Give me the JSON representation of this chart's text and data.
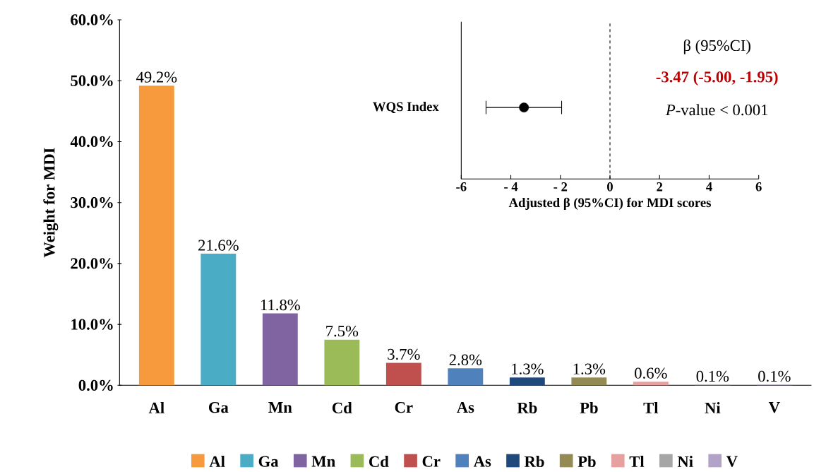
{
  "chart_data": [
    {
      "type": "bar",
      "ylabel": "Weight for MDI",
      "categories": [
        "Al",
        "Ga",
        "Mn",
        "Cd",
        "Cr",
        "As",
        "Rb",
        "Pb",
        "Tl",
        "Ni",
        "V"
      ],
      "series": [
        {
          "name": "Al",
          "color": "#f79a3e",
          "values": [
            49.2,
            null,
            null,
            null,
            null,
            null,
            null,
            null,
            null,
            null,
            null
          ],
          "value_labels": [
            "49.2%",
            null,
            null,
            null,
            null,
            null,
            null,
            null,
            null,
            null,
            null
          ]
        },
        {
          "name": "Ga",
          "color": "#4bacc6",
          "values": [
            null,
            21.6,
            null,
            null,
            null,
            null,
            null,
            null,
            null,
            null,
            null
          ],
          "value_labels": [
            null,
            "21.6%",
            null,
            null,
            null,
            null,
            null,
            null,
            null,
            null,
            null
          ]
        },
        {
          "name": "Mn",
          "color": "#8064a2",
          "values": [
            null,
            null,
            11.8,
            null,
            null,
            null,
            null,
            null,
            null,
            null,
            null
          ],
          "value_labels": [
            null,
            null,
            "11.8%",
            null,
            null,
            null,
            null,
            null,
            null,
            null,
            null
          ]
        },
        {
          "name": "Cd",
          "color": "#9bbb59",
          "values": [
            null,
            null,
            null,
            7.5,
            null,
            null,
            null,
            null,
            null,
            null,
            null
          ],
          "value_labels": [
            null,
            null,
            null,
            "7.5%",
            null,
            null,
            null,
            null,
            null,
            null,
            null
          ]
        },
        {
          "name": "Cr",
          "color": "#c0504d",
          "values": [
            null,
            null,
            null,
            null,
            3.7,
            null,
            null,
            null,
            null,
            null,
            null
          ],
          "value_labels": [
            null,
            null,
            null,
            null,
            "3.7%",
            null,
            null,
            null,
            null,
            null,
            null
          ]
        },
        {
          "name": "As",
          "color": "#4f81bd",
          "values": [
            null,
            null,
            null,
            null,
            null,
            2.8,
            null,
            null,
            null,
            null,
            null
          ],
          "value_labels": [
            null,
            null,
            null,
            null,
            null,
            "2.8%",
            null,
            null,
            null,
            null,
            null
          ]
        },
        {
          "name": "Rb",
          "color": "#1f497d",
          "values": [
            null,
            null,
            null,
            null,
            null,
            null,
            1.3,
            null,
            null,
            null,
            null
          ],
          "value_labels": [
            null,
            null,
            null,
            null,
            null,
            null,
            "1.3%",
            null,
            null,
            null,
            null
          ]
        },
        {
          "name": "Pb",
          "color": "#948a54",
          "values": [
            null,
            null,
            null,
            null,
            null,
            null,
            null,
            1.3,
            null,
            null,
            null
          ],
          "value_labels": [
            null,
            null,
            null,
            null,
            null,
            null,
            null,
            "1.3%",
            null,
            null,
            null
          ]
        },
        {
          "name": "Tl",
          "color": "#e6a0a0",
          "values": [
            null,
            null,
            null,
            null,
            null,
            null,
            null,
            null,
            0.6,
            null,
            null
          ],
          "value_labels": [
            null,
            null,
            null,
            null,
            null,
            null,
            null,
            null,
            "0.6%",
            null,
            null
          ]
        },
        {
          "name": "Ni",
          "color": "#a6a6a6",
          "values": [
            null,
            null,
            null,
            null,
            null,
            null,
            null,
            null,
            null,
            0.1,
            null
          ],
          "value_labels": [
            null,
            null,
            null,
            null,
            null,
            null,
            null,
            null,
            null,
            "0.1%",
            null
          ]
        },
        {
          "name": "V",
          "color": "#b3a2c7",
          "values": [
            null,
            null,
            null,
            null,
            null,
            null,
            null,
            null,
            null,
            null,
            0.1
          ],
          "value_labels": [
            null,
            null,
            null,
            null,
            null,
            null,
            null,
            null,
            null,
            null,
            "0.1%"
          ]
        }
      ],
      "ylim": [
        0,
        60
      ],
      "yticks": [
        {
          "value": 0,
          "label": "0.0%"
        },
        {
          "value": 10,
          "label": "10.0%"
        },
        {
          "value": 20,
          "label": "20.0%"
        },
        {
          "value": 30,
          "label": "30.0%"
        },
        {
          "value": 40,
          "label": "40.0%"
        },
        {
          "value": 50,
          "label": "50.0%"
        },
        {
          "value": 60,
          "label": "60.0%"
        }
      ],
      "legend": "bottom"
    },
    {
      "type": "scatter",
      "orientation": "horizontal",
      "categories": [
        "WQS Index"
      ],
      "values": [
        -3.47
      ],
      "errors": [
        [
          -5.0,
          -1.95
        ]
      ],
      "color": "#000000",
      "marker": "circle",
      "xlabel": "Adjusted β (95%CI) for MDI scores",
      "xlim": [
        -6,
        6
      ],
      "xticks": [
        -6,
        {
          "value": -4,
          "label": "- 4"
        },
        {
          "value": -2,
          "label": "- 2"
        },
        0,
        2,
        4,
        6
      ],
      "ref_lines": [
        {
          "axis": "x",
          "value": 0,
          "line_style": "dashed"
        }
      ],
      "annotations": [
        "β (95%CI)",
        "-3.47 (-5.00, -1.95)",
        "*P*-value < 0.001"
      ]
    }
  ]
}
